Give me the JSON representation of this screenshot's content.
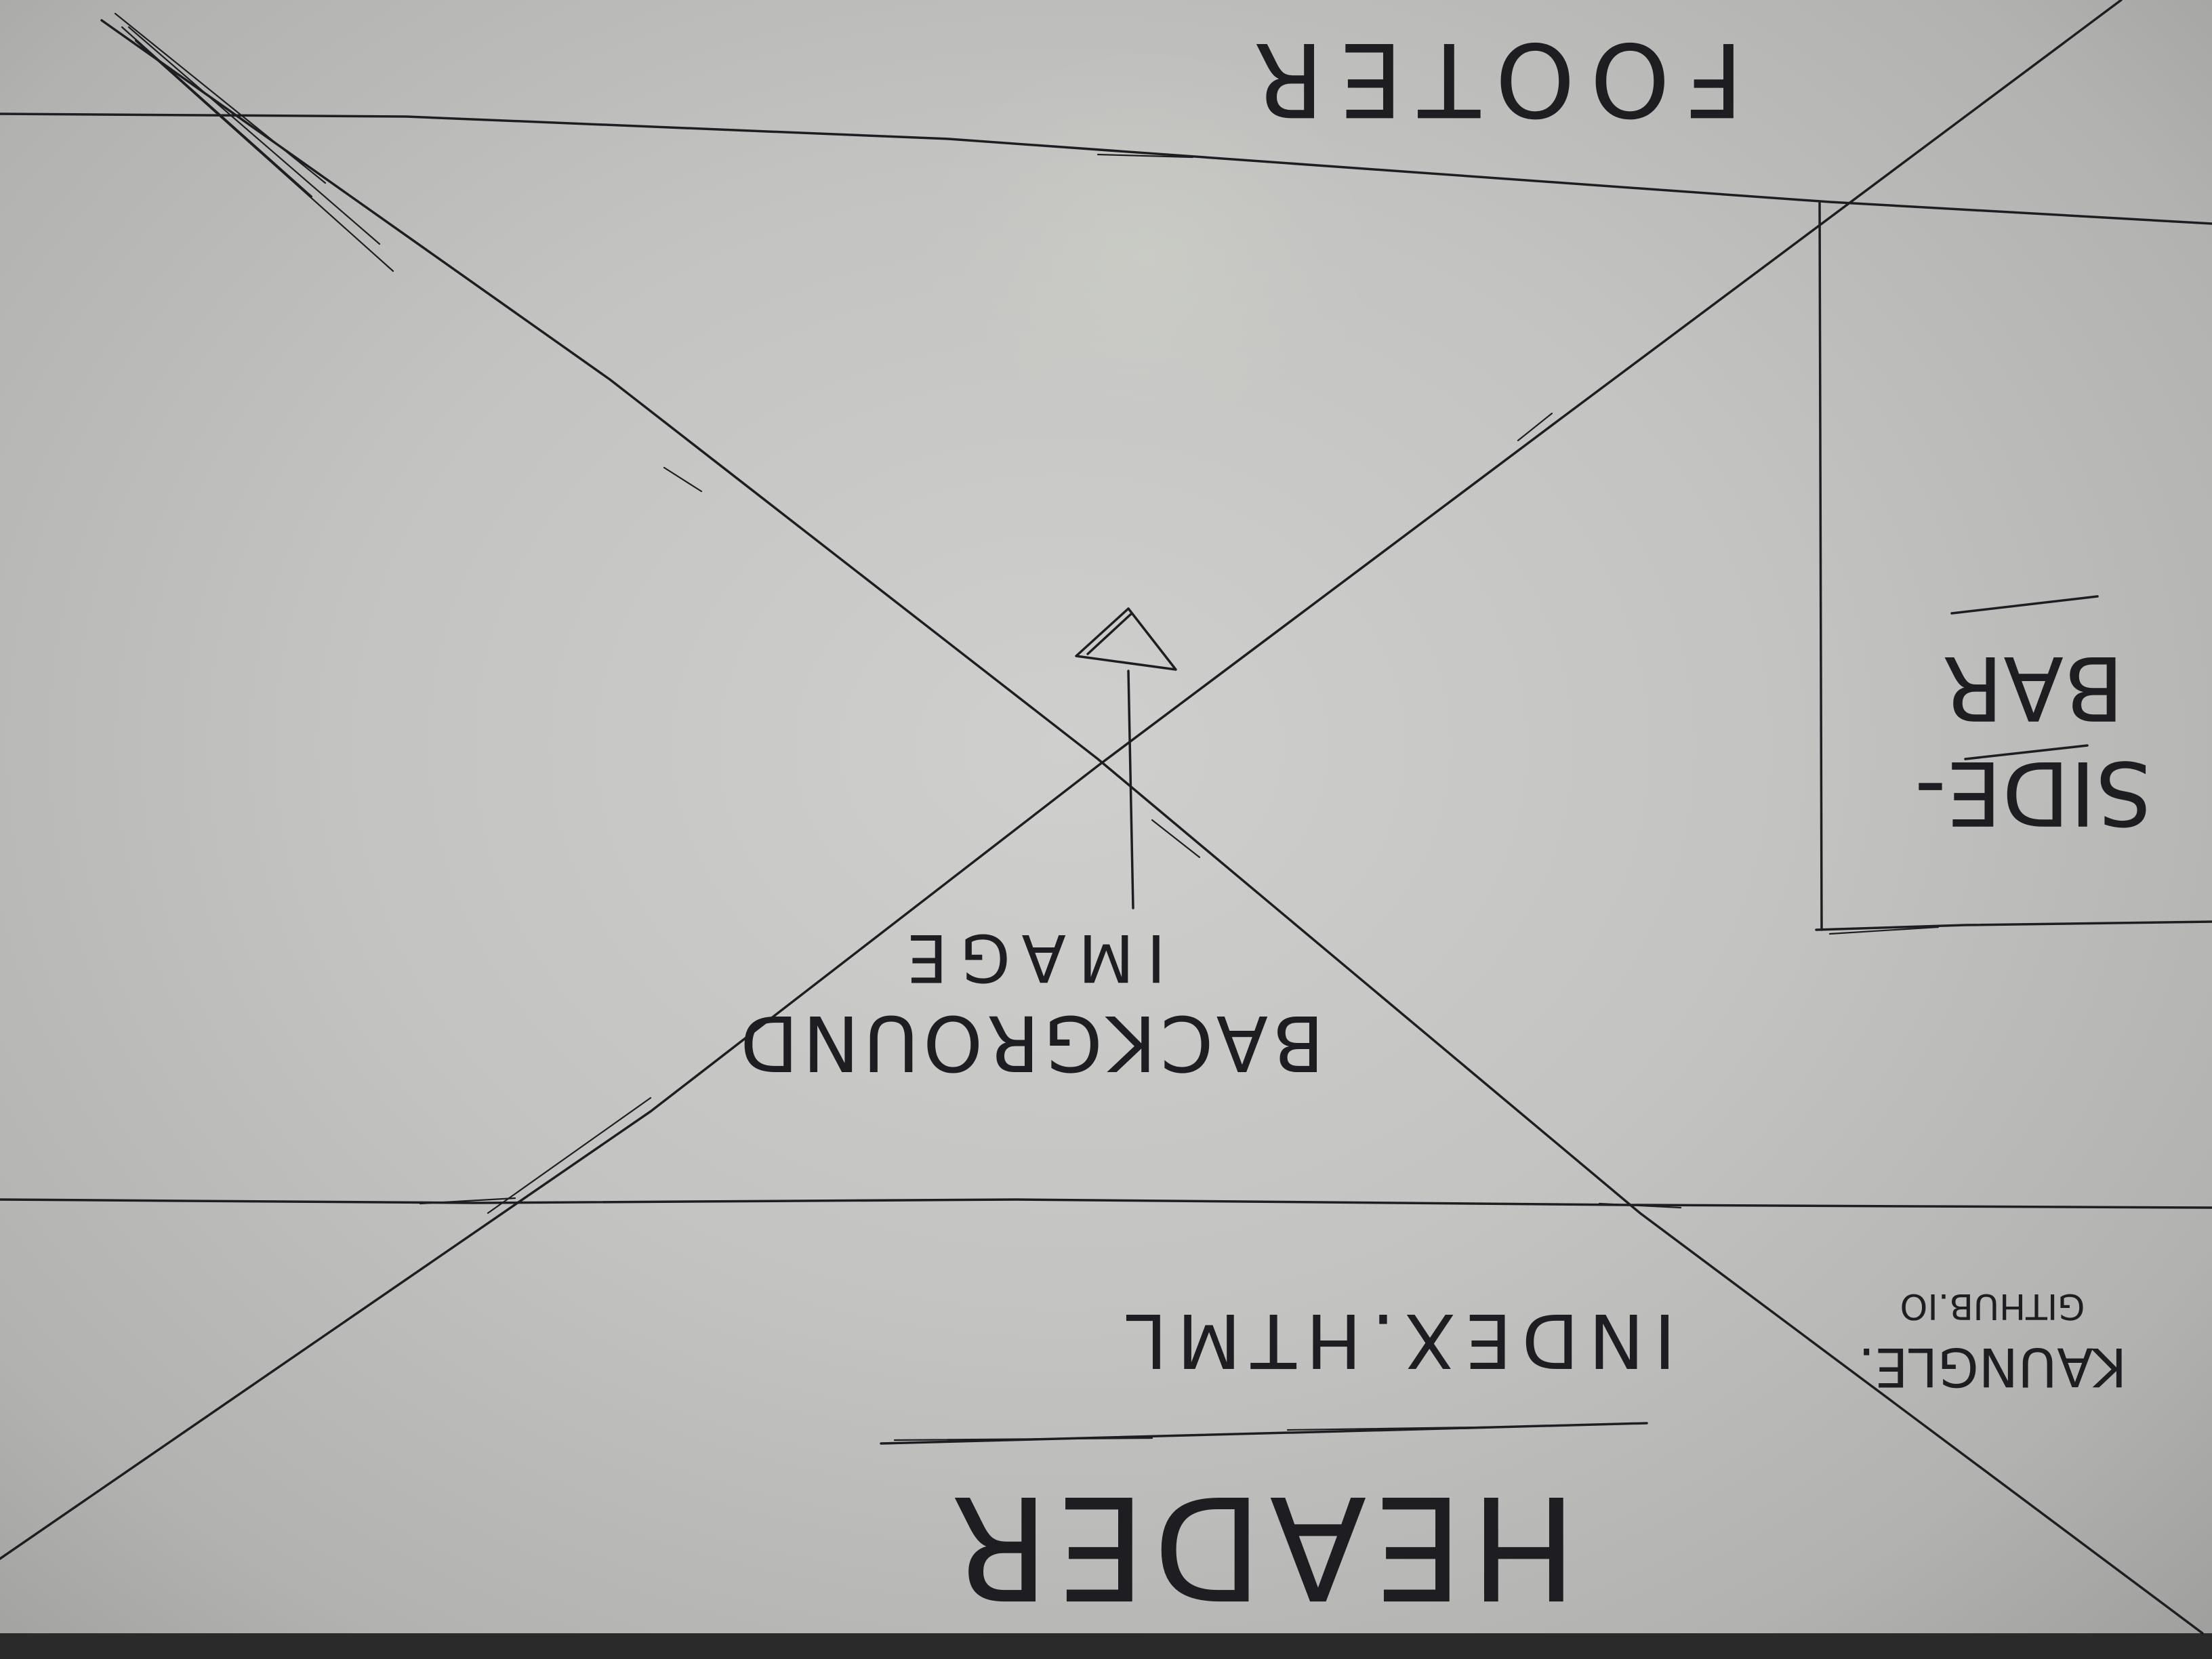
{
  "labels": {
    "header": "HEADER",
    "index": "INDEX.HTML",
    "site_url": "KAUNGLE.\nGITHUB.IO",
    "site_url_line1": "KAUNGLE.",
    "site_url_line2": "GITHUB.IO",
    "background_line1": "BACKGROUND",
    "background_line2": "IMAGE",
    "sidebar_line1": "SIDE-",
    "sidebar_line2": "BAR",
    "footer": "FOOTER"
  },
  "colors": {
    "paper": "#c6c6c4",
    "ink": "#1e1e22"
  },
  "orientation": "upside-down (rotated 180 degrees)"
}
